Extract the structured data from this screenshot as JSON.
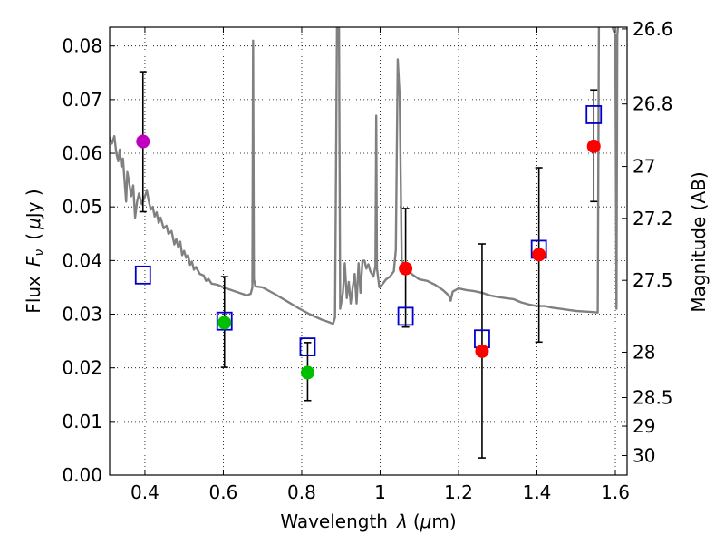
{
  "chart_data": {
    "type": "scatter",
    "xlabel_prefix": "Wavelength",
    "xlabel_symbol": "λ",
    "xlabel_unit_open": "(",
    "xlabel_unit_mu": "μ",
    "xlabel_unit_rest": "m)",
    "ylabel_prefix": "Flux",
    "ylabel_symbol": "F",
    "ylabel_subscript": "ν",
    "ylabel_unit_open": "(",
    "ylabel_unit_mu": "μ",
    "ylabel_unit_rest": "Jy )",
    "y2label": "Magnitude (AB)",
    "xlim": [
      0.31,
      1.63
    ],
    "ylim": [
      0.0,
      0.0835
    ],
    "xticks": [
      0.4,
      0.6,
      0.8,
      1.0,
      1.2,
      1.4,
      1.6
    ],
    "xtick_labels": [
      "0.4",
      "0.6",
      "0.8",
      "1",
      "1.2",
      "1.4",
      "1.6"
    ],
    "yticks": [
      0.0,
      0.01,
      0.02,
      0.03,
      0.04,
      0.05,
      0.06,
      0.07,
      0.08
    ],
    "ytick_labels": [
      "0.00",
      "0.01",
      "0.02",
      "0.03",
      "0.04",
      "0.05",
      "0.06",
      "0.07",
      "0.08"
    ],
    "mag_ticks": [
      26.6,
      26.8,
      27,
      27.2,
      27.5,
      28,
      28.5,
      29,
      30
    ],
    "mag_tick_labels": [
      "26.6",
      "26.8",
      "27",
      "27.2",
      "27.5",
      "28",
      "28.5",
      "29",
      "30"
    ],
    "grid": true,
    "colors": {
      "sed": "#808080",
      "purple": "#bf00bf",
      "green": "#00bf00",
      "red": "#ff0000",
      "model_square": "#0000cc",
      "errorbar": "#000000"
    },
    "observed": [
      {
        "x": 0.395,
        "y": 0.0622,
        "yerr_low": 0.0491,
        "yerr_high": 0.0752,
        "color": "purple"
      },
      {
        "x": 0.603,
        "y": 0.0284,
        "yerr_low": 0.0201,
        "yerr_high": 0.037,
        "color": "green"
      },
      {
        "x": 0.815,
        "y": 0.0191,
        "yerr_low": 0.0139,
        "yerr_high": 0.0247,
        "color": "green"
      },
      {
        "x": 1.065,
        "y": 0.0385,
        "yerr_low": 0.0276,
        "yerr_high": 0.0497,
        "color": "red"
      },
      {
        "x": 1.26,
        "y": 0.0231,
        "yerr_low": 0.0032,
        "yerr_high": 0.0431,
        "color": "red"
      },
      {
        "x": 1.405,
        "y": 0.0411,
        "yerr_low": 0.0248,
        "yerr_high": 0.0573,
        "color": "red"
      },
      {
        "x": 1.545,
        "y": 0.0613,
        "yerr_low": 0.051,
        "yerr_high": 0.0718,
        "color": "red"
      }
    ],
    "model_photometry": [
      {
        "x": 0.395,
        "y": 0.0373
      },
      {
        "x": 0.603,
        "y": 0.0287
      },
      {
        "x": 0.815,
        "y": 0.0239
      },
      {
        "x": 1.065,
        "y": 0.0296
      },
      {
        "x": 1.26,
        "y": 0.0254
      },
      {
        "x": 1.405,
        "y": 0.0421
      },
      {
        "x": 1.545,
        "y": 0.0672
      }
    ],
    "sed_spectrum": [
      [
        0.31,
        0.063
      ],
      [
        0.316,
        0.0618
      ],
      [
        0.322,
        0.0632
      ],
      [
        0.327,
        0.06
      ],
      [
        0.332,
        0.0585
      ],
      [
        0.336,
        0.0607
      ],
      [
        0.34,
        0.0575
      ],
      [
        0.344,
        0.059
      ],
      [
        0.348,
        0.055
      ],
      [
        0.352,
        0.051
      ],
      [
        0.355,
        0.0565
      ],
      [
        0.36,
        0.0545
      ],
      [
        0.365,
        0.052
      ],
      [
        0.37,
        0.054
      ],
      [
        0.375,
        0.048
      ],
      [
        0.38,
        0.051
      ],
      [
        0.385,
        0.0525
      ],
      [
        0.392,
        0.0505
      ],
      [
        0.4,
        0.052
      ],
      [
        0.405,
        0.053
      ],
      [
        0.41,
        0.051
      ],
      [
        0.415,
        0.0495
      ],
      [
        0.42,
        0.05
      ],
      [
        0.425,
        0.0482
      ],
      [
        0.43,
        0.049
      ],
      [
        0.435,
        0.047
      ],
      [
        0.44,
        0.048
      ],
      [
        0.448,
        0.046
      ],
      [
        0.455,
        0.0465
      ],
      [
        0.46,
        0.045
      ],
      [
        0.468,
        0.0455
      ],
      [
        0.475,
        0.043
      ],
      [
        0.48,
        0.044
      ],
      [
        0.485,
        0.0425
      ],
      [
        0.49,
        0.0435
      ],
      [
        0.495,
        0.041
      ],
      [
        0.5,
        0.0418
      ],
      [
        0.505,
        0.0405
      ],
      [
        0.51,
        0.041
      ],
      [
        0.515,
        0.0392
      ],
      [
        0.52,
        0.0398
      ],
      [
        0.525,
        0.0383
      ],
      [
        0.53,
        0.0388
      ],
      [
        0.54,
        0.0375
      ],
      [
        0.55,
        0.0372
      ],
      [
        0.556,
        0.0362
      ],
      [
        0.562,
        0.0366
      ],
      [
        0.57,
        0.0357
      ],
      [
        0.585,
        0.0355
      ],
      [
        0.6,
        0.035
      ],
      [
        0.62,
        0.0345
      ],
      [
        0.64,
        0.034
      ],
      [
        0.66,
        0.0335
      ],
      [
        0.67,
        0.0338
      ],
      [
        0.674,
        0.035
      ],
      [
        0.676,
        0.081
      ],
      [
        0.678,
        0.0365
      ],
      [
        0.682,
        0.0352
      ],
      [
        0.7,
        0.035
      ],
      [
        0.73,
        0.0338
      ],
      [
        0.76,
        0.0325
      ],
      [
        0.79,
        0.0312
      ],
      [
        0.82,
        0.03
      ],
      [
        0.85,
        0.029
      ],
      [
        0.87,
        0.0285
      ],
      [
        0.88,
        0.0282
      ],
      [
        0.885,
        0.0294
      ],
      [
        0.89,
        0.084
      ],
      [
        0.895,
        0.084
      ],
      [
        0.898,
        0.031
      ],
      [
        0.905,
        0.034
      ],
      [
        0.91,
        0.0395
      ],
      [
        0.915,
        0.033
      ],
      [
        0.92,
        0.036
      ],
      [
        0.925,
        0.032
      ],
      [
        0.93,
        0.035
      ],
      [
        0.935,
        0.0375
      ],
      [
        0.94,
        0.032
      ],
      [
        0.945,
        0.0395
      ],
      [
        0.95,
        0.034
      ],
      [
        0.955,
        0.04
      ],
      [
        0.96,
        0.04
      ],
      [
        0.965,
        0.0385
      ],
      [
        0.97,
        0.0393
      ],
      [
        0.975,
        0.038
      ],
      [
        0.983,
        0.037
      ],
      [
        0.988,
        0.039
      ],
      [
        0.99,
        0.067
      ],
      [
        0.992,
        0.0385
      ],
      [
        0.998,
        0.035
      ],
      [
        1.005,
        0.0355
      ],
      [
        1.015,
        0.0365
      ],
      [
        1.025,
        0.037
      ],
      [
        1.035,
        0.038
      ],
      [
        1.04,
        0.042
      ],
      [
        1.045,
        0.0775
      ],
      [
        1.05,
        0.0705
      ],
      [
        1.055,
        0.04
      ],
      [
        1.065,
        0.039
      ],
      [
        1.08,
        0.0375
      ],
      [
        1.1,
        0.0365
      ],
      [
        1.12,
        0.0362
      ],
      [
        1.14,
        0.0355
      ],
      [
        1.16,
        0.0345
      ],
      [
        1.175,
        0.0335
      ],
      [
        1.18,
        0.0325
      ],
      [
        1.185,
        0.0342
      ],
      [
        1.2,
        0.0348
      ],
      [
        1.22,
        0.0345
      ],
      [
        1.24,
        0.0343
      ],
      [
        1.26,
        0.034
      ],
      [
        1.28,
        0.0335
      ],
      [
        1.3,
        0.0332
      ],
      [
        1.32,
        0.033
      ],
      [
        1.34,
        0.0328
      ],
      [
        1.36,
        0.0322
      ],
      [
        1.38,
        0.0318
      ],
      [
        1.4,
        0.0315
      ],
      [
        1.42,
        0.0315
      ],
      [
        1.44,
        0.0312
      ],
      [
        1.46,
        0.031
      ],
      [
        1.48,
        0.0308
      ],
      [
        1.5,
        0.0306
      ],
      [
        1.52,
        0.0305
      ],
      [
        1.54,
        0.0304
      ],
      [
        1.555,
        0.0303
      ],
      [
        1.558,
        0.084
      ],
      [
        1.59,
        0.084
      ],
      [
        1.6,
        0.082
      ],
      [
        1.603,
        0.031
      ],
      [
        1.605,
        0.082
      ],
      [
        1.607,
        0.084
      ]
    ]
  }
}
